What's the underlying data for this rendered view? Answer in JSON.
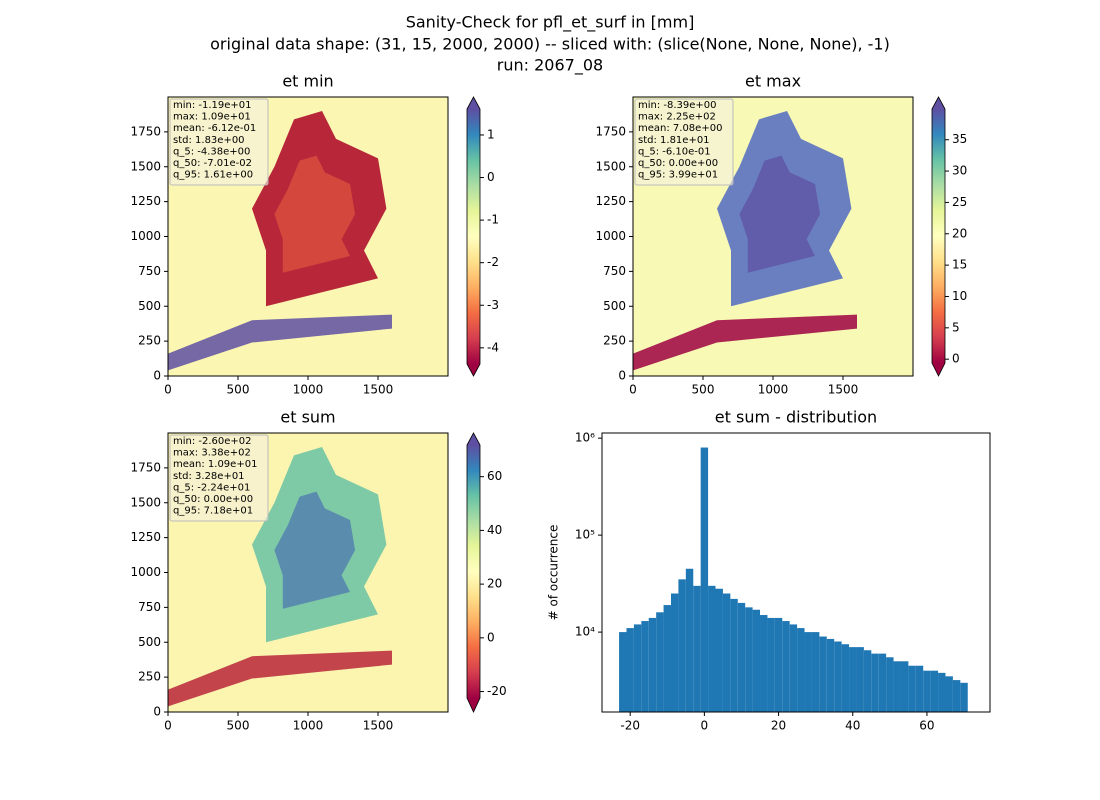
{
  "title": [
    "Sanity-Check for pfl_et_surf in [mm]",
    "original data shape: (31, 15, 2000, 2000) -- sliced with: (slice(None, None, None), -1)",
    "run: 2067_08"
  ],
  "chart_data": [
    {
      "type": "heatmap",
      "title": "et min",
      "stats": [
        "min: -1.19e+01",
        "max: 1.09e+01",
        "mean: -6.12e-01",
        "std: 1.83e+00",
        "q_5: -4.38e+00",
        "q_50: -7.01e-02",
        "q_95: 1.61e+00"
      ],
      "xlim": [
        0,
        2000
      ],
      "ylim": [
        0,
        2000
      ],
      "xticks": [
        0,
        500,
        1000,
        1500
      ],
      "yticks": [
        0,
        250,
        500,
        750,
        1000,
        1250,
        1500,
        1750
      ],
      "colormap": "Spectral",
      "colorbar_lim": [
        -4.38,
        1.61
      ],
      "colorbar_ticks": [
        -4,
        -3,
        -2,
        -1,
        0,
        1
      ]
    },
    {
      "type": "heatmap",
      "title": "et max",
      "stats": [
        "min: -8.39e+00",
        "max: 2.25e+02",
        "mean: 7.08e+00",
        "std: 1.81e+01",
        "q_5: -6.10e-01",
        "q_50: 0.00e+00",
        "q_95: 3.99e+01"
      ],
      "xlim": [
        0,
        2000
      ],
      "ylim": [
        0,
        2000
      ],
      "xticks": [
        0,
        500,
        1000,
        1500
      ],
      "yticks": [
        0,
        250,
        500,
        750,
        1000,
        1250,
        1500,
        1750
      ],
      "colormap": "Spectral",
      "colorbar_lim": [
        -0.61,
        39.9
      ],
      "colorbar_ticks": [
        0,
        5,
        10,
        15,
        20,
        25,
        30,
        35
      ]
    },
    {
      "type": "heatmap",
      "title": "et sum",
      "stats": [
        "min: -2.60e+02",
        "max: 3.38e+02",
        "mean: 1.09e+01",
        "std: 3.28e+01",
        "q_5: -2.24e+01",
        "q_50: 0.00e+00",
        "q_95: 7.18e+01"
      ],
      "xlim": [
        0,
        2000
      ],
      "ylim": [
        0,
        2000
      ],
      "xticks": [
        0,
        500,
        1000,
        1500
      ],
      "yticks": [
        0,
        250,
        500,
        750,
        1000,
        1250,
        1500,
        1750
      ],
      "colormap": "Spectral",
      "colorbar_lim": [
        -22.4,
        71.8
      ],
      "colorbar_ticks": [
        -20,
        0,
        20,
        40,
        60
      ]
    },
    {
      "type": "histogram",
      "title": "et sum - distribution",
      "y_label": "# of occurrence",
      "color": "#1f77b4",
      "log_y": true,
      "bins": [
        -23,
        -21,
        -19,
        -17,
        -15,
        -13,
        -11,
        -9,
        -7,
        -5,
        -3,
        -1,
        1,
        3,
        5,
        7,
        9,
        11,
        13,
        15,
        17,
        19,
        21,
        23,
        25,
        27,
        29,
        31,
        33,
        35,
        37,
        39,
        41,
        43,
        45,
        47,
        49,
        51,
        53,
        55,
        57,
        59,
        61,
        63,
        65,
        67,
        69,
        71
      ],
      "values": [
        10000,
        11000,
        12000,
        13000,
        14000,
        16000,
        19000,
        25000,
        35000,
        45000,
        30000,
        800000,
        30000,
        28000,
        25000,
        22000,
        20000,
        18000,
        17000,
        15000,
        14000,
        14000,
        13000,
        12000,
        11000,
        10000,
        10000,
        9000,
        8500,
        8000,
        7500,
        7000,
        7000,
        6500,
        6000,
        6000,
        5500,
        5000,
        5000,
        4500,
        4500,
        4000,
        4000,
        3800,
        3500,
        3200,
        3000
      ],
      "xlim": [
        -27.6,
        77.0
      ],
      "ylim": [
        1500,
        1130000
      ],
      "xticks": [
        -20,
        0,
        20,
        40,
        60
      ],
      "yticks": [
        {
          "value": 10000,
          "label": "10⁴"
        },
        {
          "value": 100000,
          "label": "10⁵"
        },
        {
          "value": 1000000,
          "label": "10⁶"
        }
      ]
    }
  ]
}
